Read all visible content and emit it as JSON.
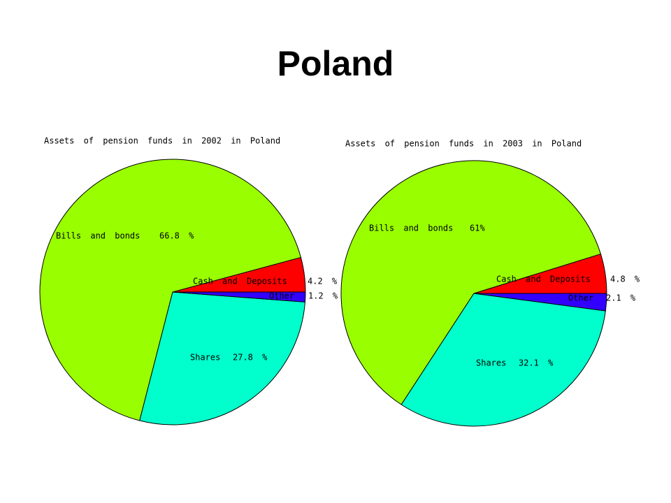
{
  "title": "Poland",
  "chart_data": [
    {
      "type": "pie",
      "title": "Assets of pension funds in 2002 in Poland",
      "categories": [
        "Cash and Deposits",
        "Bills and bonds",
        "Shares",
        "Other"
      ],
      "values": [
        4.2,
        66.8,
        27.8,
        1.2
      ],
      "value_labels": [
        "4.2 %",
        "66.8 %",
        "27.8 %",
        "1.2 %"
      ],
      "colors": [
        "#ff0000",
        "#99ff00",
        "#00ffcc",
        "#3300ff"
      ]
    },
    {
      "type": "pie",
      "title": "Assets of pension funds in 2003 in Poland",
      "categories": [
        "Cash and Deposits",
        "Bills and bonds",
        "Shares",
        "Other"
      ],
      "values": [
        4.8,
        61,
        32.1,
        2.1
      ],
      "value_labels": [
        "4.8 %",
        "61%",
        "32.1 %",
        "2.1 %"
      ],
      "colors": [
        "#ff0000",
        "#99ff00",
        "#00ffcc",
        "#3300ff"
      ]
    }
  ]
}
